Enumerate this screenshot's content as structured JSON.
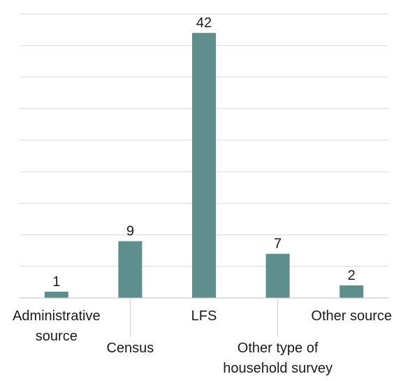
{
  "chart_data": {
    "type": "bar",
    "title": "",
    "xlabel": "",
    "ylabel": "",
    "ylim": [
      0,
      45
    ],
    "y_tick_step": 5,
    "grid": true,
    "legend": "none",
    "show_y_tick_labels": false,
    "categories": [
      {
        "lines": [
          "Administrative",
          "source"
        ],
        "row": "upper",
        "leader": false
      },
      {
        "lines": [
          "Census"
        ],
        "row": "lower",
        "leader": true
      },
      {
        "lines": [
          "LFS"
        ],
        "row": "upper",
        "leader": false
      },
      {
        "lines": [
          "Other type of",
          "household survey"
        ],
        "row": "lower",
        "leader": true
      },
      {
        "lines": [
          "Other source"
        ],
        "row": "upper",
        "leader": false
      }
    ],
    "values": [
      1,
      9,
      42,
      7,
      2
    ],
    "colors": {
      "bar": "#5f8f8c",
      "grid": "#d9d9d9",
      "axis": "#bfbfbf",
      "leader": "#cccccc",
      "text": "#1a1a1a"
    }
  }
}
